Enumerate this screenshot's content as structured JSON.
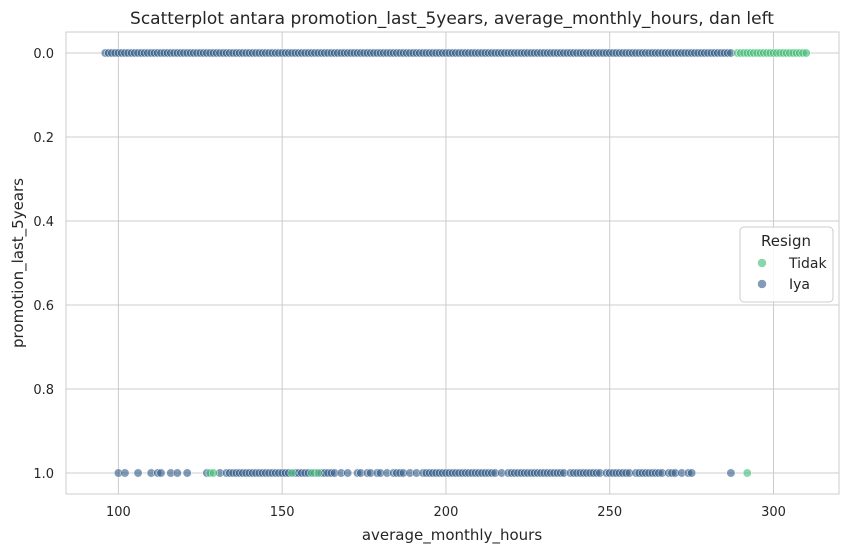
{
  "chart_data": {
    "type": "scatter",
    "title": "Scatterplot antara promotion_last_5years, average_monthly_hours, dan left",
    "xlabel": "average_monthly_hours",
    "ylabel": "promotion_last_5years",
    "xlim": [
      84,
      320
    ],
    "ylim": [
      1.05,
      -0.05
    ],
    "y_inverted": true,
    "xticks": [
      100,
      150,
      200,
      250,
      300
    ],
    "yticks": [
      "0.0",
      "0.2",
      "0.4",
      "0.6",
      "0.8",
      "1.0"
    ],
    "yticks_values": [
      0.0,
      0.2,
      0.4,
      0.6,
      0.8,
      1.0
    ],
    "grid": true,
    "legend": {
      "title": "Resign",
      "placement": "center-right",
      "entries": [
        "Tidak",
        "Iya"
      ]
    },
    "colors": {
      "Tidak": "#3dba73",
      "Iya": "#2e5a87",
      "marker_edge": "#ffffff",
      "grid": "#cccccc",
      "axes_edge": "#cccccc"
    },
    "series": [
      {
        "name": "Tidak",
        "y_value": 0.0,
        "x_range_dense": [
          289,
          310
        ],
        "x": [
          289,
          290,
          291,
          292,
          293,
          294,
          295,
          296,
          297,
          298,
          299,
          300,
          301,
          302,
          303,
          304,
          305,
          306,
          307,
          308,
          309,
          310
        ]
      },
      {
        "name": "Iya",
        "y_value": 0.0,
        "x_range_dense": [
          96,
          287
        ],
        "x_step": 1
      },
      {
        "name": "Tidak",
        "y_value": 1.0,
        "x": [
          128,
          129,
          153,
          159,
          161,
          292
        ]
      },
      {
        "name": "Iya",
        "y_value": 1.0,
        "x": [
          100,
          102,
          106,
          110,
          112,
          113,
          116,
          118,
          121,
          127,
          131,
          133,
          134,
          135,
          136,
          137,
          138,
          139,
          140,
          141,
          142,
          143,
          144,
          145,
          146,
          147,
          148,
          149,
          150,
          151,
          152,
          154,
          155,
          156,
          157,
          158,
          160,
          162,
          163,
          164,
          165,
          166,
          168,
          170,
          173,
          174,
          176,
          177,
          179,
          180,
          182,
          184,
          185,
          186,
          187,
          189,
          191,
          193,
          194,
          195,
          196,
          197,
          198,
          199,
          200,
          201,
          202,
          203,
          204,
          205,
          206,
          207,
          208,
          209,
          210,
          211,
          212,
          213,
          214,
          215,
          217,
          219,
          220,
          221,
          222,
          223,
          224,
          225,
          226,
          227,
          228,
          229,
          230,
          231,
          232,
          233,
          234,
          235,
          236,
          238,
          239,
          240,
          241,
          242,
          243,
          244,
          245,
          246,
          247,
          249,
          250,
          251,
          252,
          253,
          254,
          255,
          256,
          258,
          259,
          260,
          261,
          262,
          263,
          264,
          265,
          266,
          268,
          269,
          270,
          272,
          274,
          275,
          287
        ]
      }
    ]
  }
}
